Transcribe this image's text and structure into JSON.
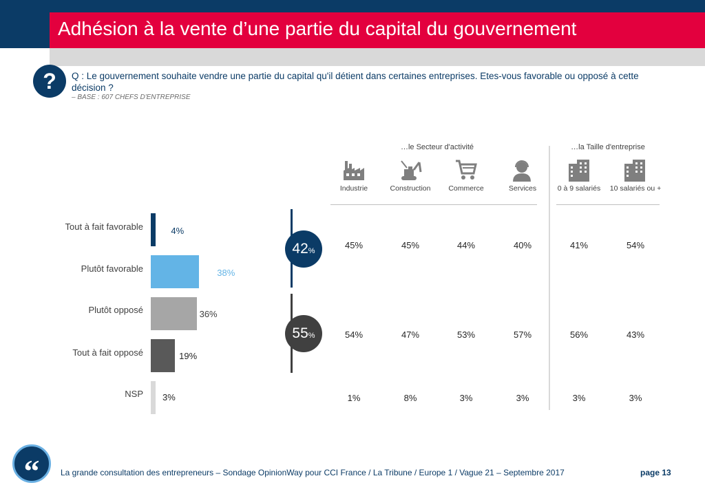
{
  "header": {
    "title": "Adhésion à la vente d’une partie du capital du gouvernement",
    "question_mark": "?",
    "question": "Q : Le gouvernement souhaite vendre une partie du capital qu'il détient dans certaines entreprises. Etes-vous favorable ou opposé à cette décision ?",
    "base": "– BASE : 607 CHEFS D'ENTREPRISE"
  },
  "colors": {
    "navy": "#0b3b66",
    "red": "#e3003e",
    "light_blue": "#63b4e6",
    "gray": "#a6a6a6",
    "dark_gray": "#595959",
    "very_light_gray": "#d9d9d9",
    "bubble_dark": "#404040"
  },
  "chart_data": {
    "type": "bar",
    "orientation": "horizontal",
    "title": "Adhésion à la vente d’une partie du capital du gouvernement",
    "categories": [
      "Tout à fait favorable",
      "Plutôt favorable",
      "Plutôt opposé",
      "Tout à fait opposé",
      "NSP"
    ],
    "values": [
      4,
      38,
      36,
      19,
      3
    ],
    "labels": [
      "4%",
      "38%",
      "36%",
      "19%",
      "3%"
    ],
    "unit": "%"
  },
  "summary": {
    "favorable": {
      "value": "42",
      "unit": "%"
    },
    "oppose": {
      "value": "55",
      "unit": "%"
    }
  },
  "breakdown": {
    "group_secteur": "…le Secteur d'activité",
    "group_taille": "…la Taille d'entreprise",
    "columns": [
      {
        "label": "Industrie",
        "icon": "factory-icon",
        "favorable": "45%",
        "oppose": "54%",
        "nsp": "1%"
      },
      {
        "label": "Construction",
        "icon": "excavator-icon",
        "favorable": "45%",
        "oppose": "47%",
        "nsp": "8%"
      },
      {
        "label": "Commerce",
        "icon": "shopping-cart-icon",
        "favorable": "44%",
        "oppose": "53%",
        "nsp": "3%"
      },
      {
        "label": "Services",
        "icon": "headset-person-icon",
        "favorable": "40%",
        "oppose": "57%",
        "nsp": "3%"
      },
      {
        "label": "0 à 9 salariés",
        "icon": "buildings-icon",
        "favorable": "41%",
        "oppose": "56%",
        "nsp": "3%"
      },
      {
        "label": "10 salariés ou +",
        "icon": "buildings-icon",
        "favorable": "54%",
        "oppose": "43%",
        "nsp": "3%"
      }
    ]
  },
  "footer": {
    "quote_glyph": "“",
    "text": "La grande consultation des entrepreneurs – Sondage OpinionWay pour CCI France / La Tribune / Europe 1 / Vague 21 – Septembre 2017",
    "page": "page 13"
  }
}
